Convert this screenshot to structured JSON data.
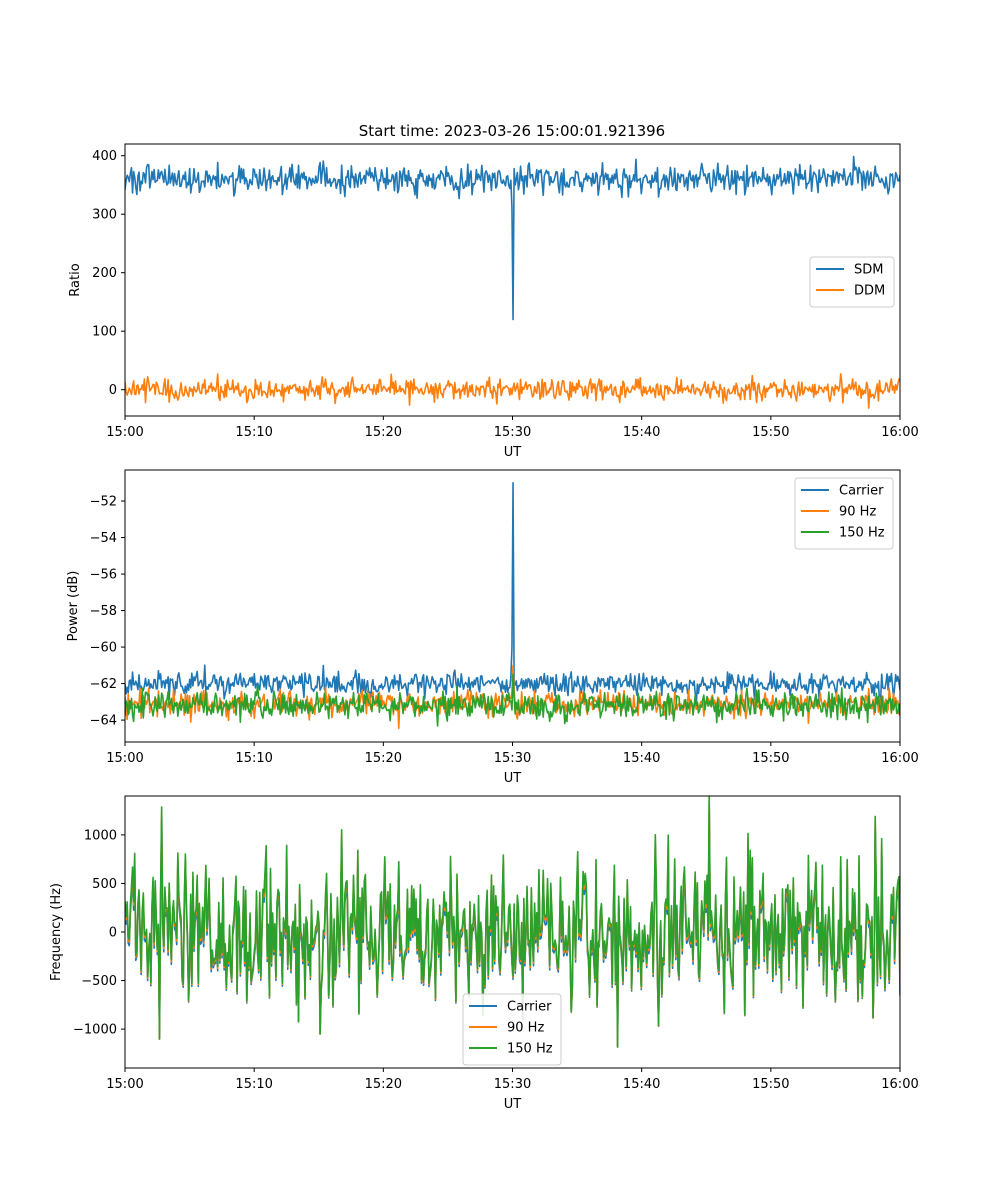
{
  "figure": {
    "title": "Start time: 2023-03-26 15:00:01.921396"
  },
  "chart_data": [
    {
      "type": "line",
      "xlabel": "UT",
      "ylabel": "Ratio",
      "xticks": [
        "15:00",
        "15:10",
        "15:20",
        "15:30",
        "15:40",
        "15:50",
        "16:00"
      ],
      "xlim": [
        0,
        60
      ],
      "ylim": [
        -45,
        420
      ],
      "yticks": [
        0,
        100,
        200,
        300,
        400
      ],
      "legend": "center-right",
      "grid": false,
      "series": [
        {
          "name": "SDM",
          "color": "#1f77b4",
          "baseline": 360,
          "noise": 22,
          "spike": {
            "t": 30,
            "value": 120
          }
        },
        {
          "name": "DDM",
          "color": "#ff7f0e",
          "baseline": 0,
          "noise": 17
        }
      ]
    },
    {
      "type": "line",
      "xlabel": "UT",
      "ylabel": "Power (dB)",
      "xticks": [
        "15:00",
        "15:10",
        "15:20",
        "15:30",
        "15:40",
        "15:50",
        "16:00"
      ],
      "xlim": [
        0,
        60
      ],
      "ylim": [
        -65.2,
        -50.3
      ],
      "yticks": [
        -64,
        -62,
        -60,
        -58,
        -56,
        -54,
        -52
      ],
      "legend": "top-right",
      "grid": false,
      "series": [
        {
          "name": "Carrier",
          "color": "#1f77b4",
          "baseline": -62.0,
          "noise": 0.6,
          "spike": {
            "t": 30,
            "value": -51.0
          }
        },
        {
          "name": "90 Hz",
          "color": "#ff7f0e",
          "baseline": -63.1,
          "noise": 0.6,
          "spike": {
            "t": 30,
            "value": -61.0
          }
        },
        {
          "name": "150 Hz",
          "color": "#2ca02c",
          "baseline": -63.2,
          "noise": 0.7,
          "spike": {
            "t": 30,
            "value": -61.5
          }
        }
      ]
    },
    {
      "type": "line",
      "xlabel": "UT",
      "ylabel": "Frequency (Hz)",
      "xticks": [
        "15:00",
        "15:10",
        "15:20",
        "15:30",
        "15:40",
        "15:50",
        "16:00"
      ],
      "xlim": [
        0,
        60
      ],
      "ylim": [
        -1400,
        1400
      ],
      "yticks": [
        -1000,
        -500,
        0,
        500,
        1000
      ],
      "legend": "bottom-center",
      "grid": false,
      "series": [
        {
          "name": "Carrier",
          "color": "#1f77b4",
          "baseline": 0,
          "noise": 420,
          "offset": -40
        },
        {
          "name": "90 Hz",
          "color": "#ff7f0e",
          "baseline": 0,
          "noise": 420,
          "offset": 0
        },
        {
          "name": "150 Hz",
          "color": "#2ca02c",
          "baseline": 0,
          "noise": 420,
          "offset": 30
        }
      ]
    }
  ]
}
